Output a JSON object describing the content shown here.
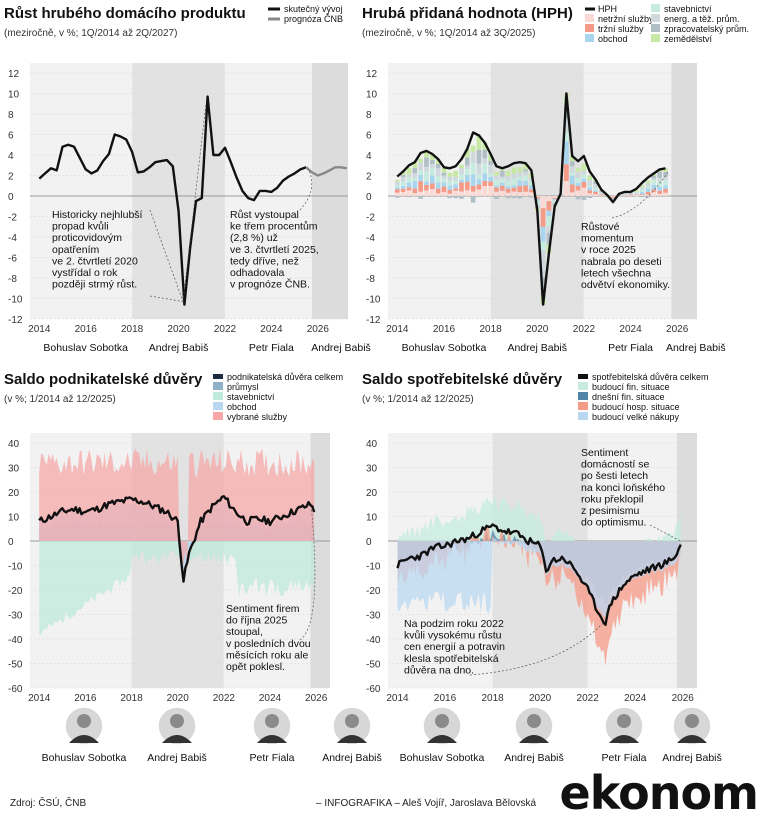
{
  "chart_data": [
    {
      "type": "line",
      "title": "Růst hrubého domácího produktu",
      "subtitle": "(meziročně, v %; 1Q/2014 až 2Q/2027)",
      "ylim": [
        -12,
        12
      ],
      "yticks": [
        "12",
        "10",
        "8",
        "6",
        "4",
        "2",
        "0",
        "-2",
        "-4",
        "-6",
        "-8",
        "-10",
        "-12"
      ],
      "xticks": [
        "2014",
        "2016",
        "2018",
        "2020",
        "2022",
        "2024",
        "2026"
      ],
      "series": [
        {
          "name": "skutečný vývoj",
          "color": "#111111",
          "x": [
            2014.0,
            2014.25,
            2014.5,
            2014.75,
            2015.0,
            2015.25,
            2015.5,
            2015.75,
            2016.0,
            2016.25,
            2016.5,
            2016.75,
            2017.0,
            2017.25,
            2017.5,
            2017.75,
            2018.0,
            2018.25,
            2018.5,
            2018.75,
            2019.0,
            2019.25,
            2019.5,
            2019.75,
            2020.0,
            2020.25,
            2020.5,
            2020.75,
            2021.0,
            2021.25,
            2021.5,
            2021.75,
            2022.0,
            2022.25,
            2022.5,
            2022.75,
            2023.0,
            2023.25,
            2023.5,
            2023.75,
            2024.0,
            2024.25,
            2024.5,
            2024.75,
            2025.0,
            2025.25,
            2025.5
          ],
          "values": [
            1.7,
            2.2,
            2.7,
            2.5,
            4.8,
            5.0,
            4.8,
            3.7,
            2.6,
            2.2,
            2.5,
            3.4,
            4.1,
            6.0,
            5.8,
            5.5,
            4.3,
            2.3,
            2.4,
            2.8,
            3.3,
            3.4,
            3.5,
            2.9,
            -1.5,
            -10.6,
            -5.0,
            -0.5,
            -0.2,
            9.7,
            4.0,
            4.0,
            4.7,
            3.3,
            1.8,
            0.5,
            -0.2,
            -0.4,
            0.5,
            0.5,
            0.4,
            0.8,
            1.5,
            1.9,
            2.2,
            2.6,
            2.8
          ]
        },
        {
          "name": "prognóza ČNB",
          "color": "#888888",
          "x": [
            2025.5,
            2025.75,
            2026.0,
            2026.25,
            2026.5,
            2026.75,
            2027.0,
            2027.25
          ],
          "values": [
            2.8,
            2.3,
            2.0,
            2.2,
            2.5,
            2.8,
            2.8,
            2.7
          ]
        }
      ],
      "annotations": [
        "Historicky nejhlubší propad kvůli proticovidovým opatřením ve 2. čtvrtletí 2020 vystřídal o rok později strmý růst.",
        "Růst vystoupal ke třem procentům (2,8 %) už ve 3. čtvrtletí 2025, tedy dříve, než odhadovala v prognóze ČNB."
      ],
      "governments": [
        "Bohuslav Sobotka",
        "Andrej Babiš",
        "Petr Fiala",
        "Andrej Babiš"
      ]
    },
    {
      "type": "bar",
      "title": "Hrubá přidaná hodnota (HPH)",
      "subtitle": "(meziročně, v %; 1Q/2014 až 3Q/2025)",
      "ylim": [
        -12,
        12
      ],
      "yticks": [
        "12",
        "10",
        "8",
        "6",
        "4",
        "2",
        "0",
        "-2",
        "-4",
        "-6",
        "-8",
        "-10",
        "-12"
      ],
      "xticks": [
        "2014",
        "2016",
        "2018",
        "2020",
        "2022",
        "2024",
        "2026"
      ],
      "legend": [
        {
          "name": "HPH",
          "color": "#111111"
        },
        {
          "name": "netržní služby",
          "color": "#fbd9d4"
        },
        {
          "name": "tržní služby",
          "color": "#f59a87"
        },
        {
          "name": "obchod",
          "color": "#a9d6ee"
        },
        {
          "name": "stavebnictví",
          "color": "#c6ecdf"
        },
        {
          "name": "energ. a těž. prům.",
          "color": "#cfd8dc"
        },
        {
          "name": "zpracovatelský prům.",
          "color": "#b0bec5"
        },
        {
          "name": "zemědělství",
          "color": "#c6e8a4"
        }
      ],
      "x": [
        2014.0,
        2014.25,
        2014.5,
        2014.75,
        2015.0,
        2015.25,
        2015.5,
        2015.75,
        2016.0,
        2016.25,
        2016.5,
        2016.75,
        2017.0,
        2017.25,
        2017.5,
        2017.75,
        2018.0,
        2018.25,
        2018.5,
        2018.75,
        2019.0,
        2019.25,
        2019.5,
        2019.75,
        2020.0,
        2020.25,
        2020.5,
        2020.75,
        2021.0,
        2021.25,
        2021.5,
        2021.75,
        2022.0,
        2022.25,
        2022.5,
        2022.75,
        2023.0,
        2023.25,
        2023.5,
        2023.75,
        2024.0,
        2024.25,
        2024.5,
        2024.75,
        2025.0,
        2025.25,
        2025.5
      ],
      "hph": [
        1.9,
        2.4,
        3.0,
        3.3,
        4.2,
        4.4,
        4.1,
        3.6,
        2.8,
        2.7,
        2.9,
        3.6,
        4.6,
        6.2,
        5.9,
        5.2,
        4.1,
        2.9,
        2.7,
        2.9,
        3.2,
        3.3,
        3.2,
        2.5,
        -1.4,
        -10.6,
        -5.6,
        -1.0,
        0.2,
        10.0,
        3.9,
        3.4,
        3.9,
        2.4,
        1.6,
        0.6,
        0.1,
        -0.6,
        0.2,
        0.4,
        0.4,
        0.7,
        1.3,
        1.8,
        2.2,
        2.6,
        2.7
      ],
      "annotations": [
        "Růstové momentum v roce 2025 nabrala po deseti letech všechna odvětví ekonomiky."
      ],
      "governments": [
        "Bohuslav Sobotka",
        "Andrej Babiš",
        "Petr Fiala",
        "Andrej Babiš"
      ]
    },
    {
      "type": "area",
      "title": "Saldo podnikatelské důvěry",
      "subtitle": "(v %; 1/2014 až 12/2025)",
      "ylim": [
        -60,
        40
      ],
      "yticks": [
        "40",
        "30",
        "20",
        "10",
        "0",
        "-10",
        "-20",
        "-30",
        "-40",
        "-50",
        "-60"
      ],
      "xticks": [
        "2014",
        "2016",
        "2018",
        "2020",
        "2022",
        "2024",
        "2026"
      ],
      "legend": [
        {
          "name": "podnikatelská důvěra celkem",
          "color": "#1c2a44"
        },
        {
          "name": "průmysl",
          "color": "#8fb2c9"
        },
        {
          "name": "stavebnictví",
          "color": "#bfeadc"
        },
        {
          "name": "obchod",
          "color": "#b9d7f0"
        },
        {
          "name": "vybrané služby",
          "color": "#f6a8a8"
        }
      ],
      "x": [
        2014.0,
        2014.5,
        2015.0,
        2015.5,
        2016.0,
        2016.5,
        2017.0,
        2017.5,
        2018.0,
        2018.5,
        2019.0,
        2019.5,
        2020.0,
        2020.25,
        2020.5,
        2021.0,
        2021.5,
        2022.0,
        2022.5,
        2023.0,
        2023.5,
        2024.0,
        2024.5,
        2025.0,
        2025.5,
        2025.75,
        2026.0
      ],
      "values": [
        8,
        10,
        12,
        13,
        12,
        13,
        15,
        16,
        17,
        16,
        14,
        12,
        8,
        -16,
        -5,
        8,
        14,
        18,
        12,
        8,
        9,
        8,
        10,
        12,
        14,
        15,
        11
      ],
      "annotations": [
        "Sentiment firem do října 2025 stoupal, v posledních dvou měsících roku ale opět poklesl."
      ],
      "portraits": [
        "Bohuslav Sobotka",
        "Andrej Babiš",
        "Petr Fiala",
        "Andrej Babiš"
      ]
    },
    {
      "type": "area",
      "title": "Saldo spotřebitelské důvěry",
      "subtitle": "(v %; 1/2014 až 12/2025)",
      "ylim": [
        -60,
        40
      ],
      "yticks": [
        "40",
        "30",
        "20",
        "10",
        "0",
        "-10",
        "-20",
        "-30",
        "-40",
        "-50",
        "-60"
      ],
      "xticks": [
        "2014",
        "2016",
        "2018",
        "2020",
        "2022",
        "2024",
        "2026"
      ],
      "legend": [
        {
          "name": "spotřebitelská důvěra celkem",
          "color": "#111111"
        },
        {
          "name": "budoucí fin. situace",
          "color": "#c6ecdf"
        },
        {
          "name": "dnešní fin. situace",
          "color": "#4f84a8"
        },
        {
          "name": "budoucí hosp. situace",
          "color": "#f59a87"
        },
        {
          "name": "budoucí velké nákupy",
          "color": "#b9d7f0"
        }
      ],
      "x": [
        2014.0,
        2014.5,
        2015.0,
        2015.5,
        2016.0,
        2016.5,
        2017.0,
        2017.5,
        2018.0,
        2018.5,
        2019.0,
        2019.5,
        2020.0,
        2020.25,
        2020.5,
        2021.0,
        2021.5,
        2022.0,
        2022.25,
        2022.5,
        2022.75,
        2023.0,
        2023.5,
        2024.0,
        2024.5,
        2025.0,
        2025.5,
        2025.75,
        2026.0
      ],
      "values": [
        -10,
        -7,
        -6,
        -3,
        -2,
        0,
        1,
        4,
        6,
        4,
        3,
        0,
        -2,
        -12,
        -8,
        -7,
        -12,
        -20,
        -25,
        -30,
        -33,
        -25,
        -18,
        -14,
        -12,
        -10,
        -8,
        -5,
        0
      ],
      "annotations": [
        "Sentiment domácností se po šesti letech na konci loňského roku překlopil z pesimismu do optimismu.",
        "Na podzim roku 2022 kvůli vysokému růstu cen energií a potravin klesla spotřebitelská důvěra na dno."
      ],
      "portraits": [
        "Bohuslav Sobotka",
        "Andrej Babiš",
        "Petr Fiala",
        "Andrej Babiš"
      ]
    }
  ],
  "footer": {
    "source": "Zdroj: ČSÚ, ČNB",
    "credit": "– INFOGRAFIKA –   Aleš Vojíř, Jaroslava Bělovská",
    "logo": "ekonom"
  }
}
